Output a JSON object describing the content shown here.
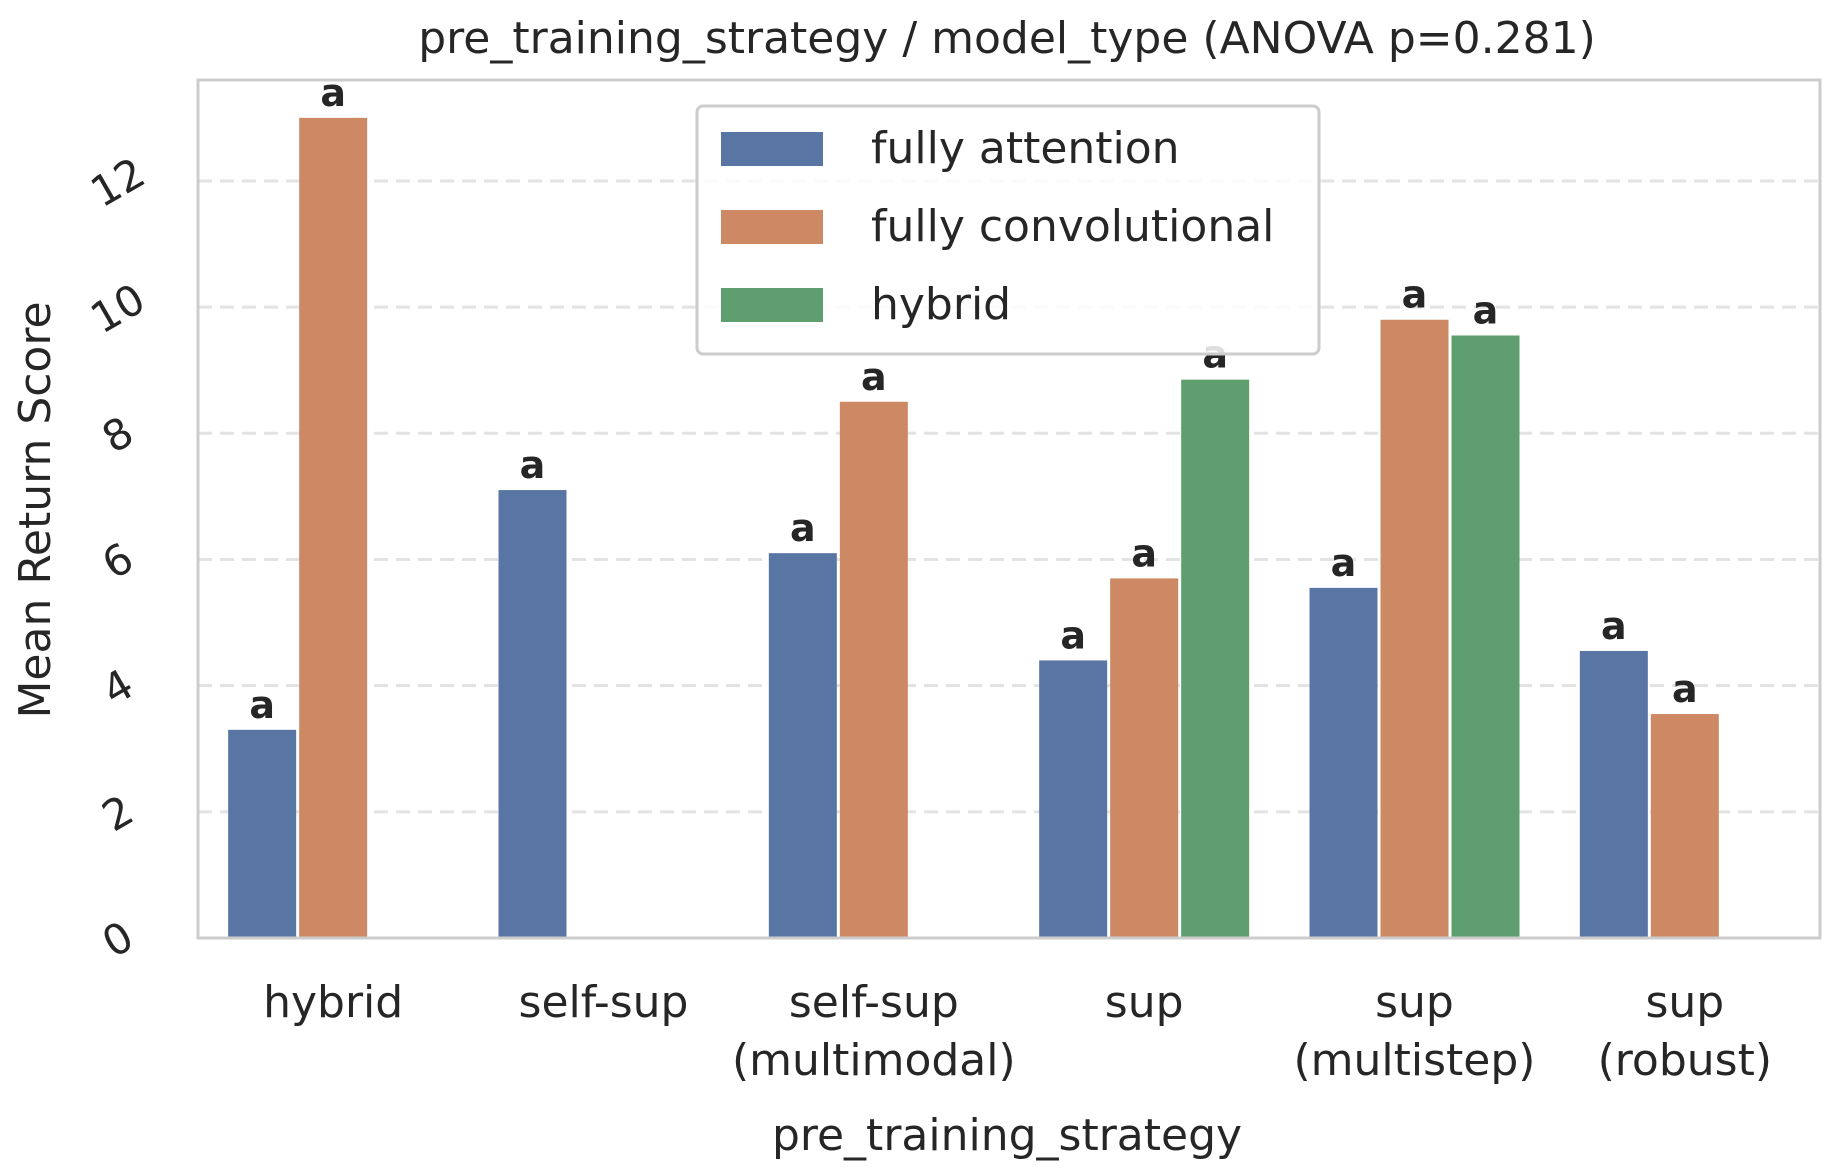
{
  "chart_data": {
    "type": "bar",
    "title": "pre_training_strategy / model_type  (ANOVA p=0.281)",
    "xlabel": "pre_training_strategy",
    "ylabel": "Mean Return Score",
    "ylim": [
      0,
      13.6
    ],
    "yticks": [
      0,
      2,
      4,
      6,
      8,
      10,
      12
    ],
    "grid": "horizontal dashed",
    "legend_position": "upper-center",
    "categories": [
      [
        "hybrid"
      ],
      [
        "self-sup"
      ],
      [
        "self-sup",
        "(multimodal)"
      ],
      [
        "sup"
      ],
      [
        "sup",
        "(multistep)"
      ],
      [
        "sup",
        "(robust)"
      ]
    ],
    "series": [
      {
        "name": "fully attention",
        "color": "#5975a4",
        "values": [
          3.3,
          7.1,
          6.1,
          4.4,
          5.55,
          4.55
        ],
        "labels": [
          "a",
          "a",
          "a",
          "a",
          "a",
          "a"
        ]
      },
      {
        "name": "fully convolutional",
        "color": "#cc8963",
        "values": [
          13.0,
          null,
          8.5,
          5.7,
          9.8,
          3.55
        ],
        "labels": [
          "a",
          "",
          "a",
          "a",
          "a",
          "a"
        ]
      },
      {
        "name": "hybrid",
        "color": "#5f9e6e",
        "values": [
          null,
          null,
          null,
          8.85,
          9.55,
          null
        ],
        "labels": [
          "",
          "",
          "",
          "a",
          "a",
          ""
        ]
      }
    ]
  }
}
